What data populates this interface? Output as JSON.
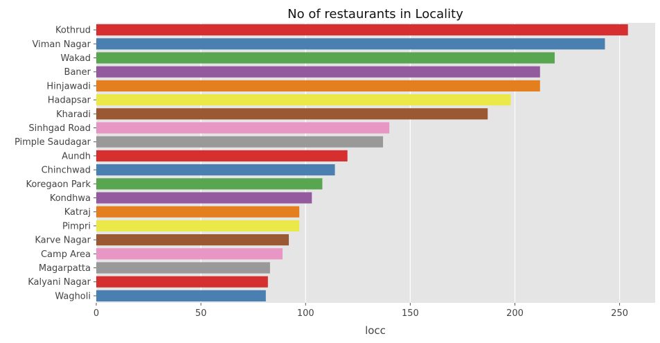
{
  "chart_data": {
    "type": "bar",
    "orientation": "horizontal",
    "title": "No of restaurants in Locality",
    "xlabel": "locc",
    "ylabel": "",
    "xlim": [
      0,
      267
    ],
    "xticks": [
      0,
      50,
      100,
      150,
      200,
      250
    ],
    "grid": true,
    "legend": "none",
    "categories": [
      "Kothrud",
      "Viman Nagar",
      "Wakad",
      "Baner",
      "Hinjawadi",
      "Hadapsar",
      "Kharadi",
      "Sinhgad Road",
      "Pimple Saudagar",
      "Aundh",
      "Chinchwad",
      "Koregaon Park",
      "Kondhwa",
      "Katraj",
      "Pimpri",
      "Karve Nagar",
      "Camp Area",
      "Magarpatta",
      "Kalyani Nagar",
      "Wagholi"
    ],
    "values": [
      254,
      243,
      219,
      212,
      212,
      198,
      187,
      140,
      137,
      120,
      114,
      108,
      103,
      97,
      97,
      92,
      89,
      83,
      82,
      81
    ],
    "colors": [
      "#d62f2f",
      "#4a7fb1",
      "#58a650",
      "#935a9e",
      "#e47f1f",
      "#ebe84a",
      "#9a5833",
      "#e896c3",
      "#999999",
      "#d62f2f",
      "#4a7fb1",
      "#58a650",
      "#935a9e",
      "#e47f1f",
      "#ebe84a",
      "#9a5833",
      "#e896c3",
      "#999999",
      "#d62f2f",
      "#4a7fb1"
    ],
    "background": "#e5e5e5"
  }
}
